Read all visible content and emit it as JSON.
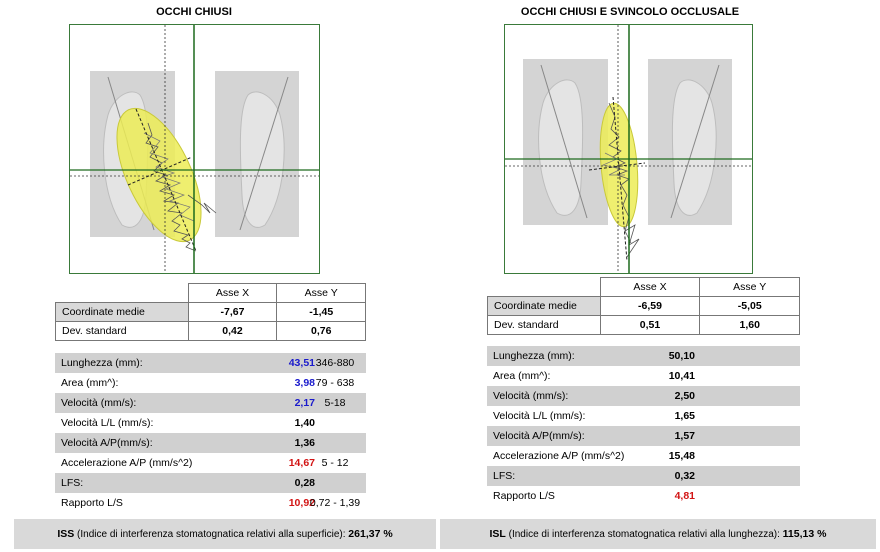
{
  "left": {
    "title": "OCCHI CHIUSI",
    "table": {
      "col_x": "Asse X",
      "col_y": "Asse Y",
      "rows": [
        {
          "label": "Coordinate medie",
          "x": "-7,67",
          "y": "-1,45"
        },
        {
          "label": "Dev. standard",
          "x": "0,42",
          "y": "0,76"
        }
      ]
    },
    "stats": [
      {
        "label": "Lunghezza (mm):",
        "value": "43,51",
        "ref": "346-880",
        "color": "blue"
      },
      {
        "label": "Area (mm^):",
        "value": "3,98",
        "ref": "79 - 638",
        "color": "blue"
      },
      {
        "label": "Velocità (mm/s):",
        "value": "2,17",
        "ref": "5-18",
        "color": "blue"
      },
      {
        "label": "Velocità L/L (mm/s):",
        "value": "1,40",
        "ref": "",
        "color": "black"
      },
      {
        "label": "Velocità  A/P(mm/s):",
        "value": "1,36",
        "ref": "",
        "color": "black"
      },
      {
        "label": "Accelerazione  A/P (mm/s^2)",
        "value": "14,67",
        "ref": "5 - 12",
        "color": "red"
      },
      {
        "label": "LFS:",
        "value": "0,28",
        "ref": "",
        "color": "black"
      },
      {
        "label": "Rapporto L/S",
        "value": "10,92",
        "ref": "0,72 - 1,39",
        "color": "red"
      }
    ],
    "footer": {
      "code": "ISS",
      "text": " (Indice di interferenza stomatognatica relativi alla superficie): ",
      "value": "261,37 %"
    }
  },
  "right": {
    "title": "OCCHI CHIUSI  E SVINCOLO OCCLUSALE",
    "table": {
      "col_x": "Asse X",
      "col_y": "Asse Y",
      "rows": [
        {
          "label": "Coordinate medie",
          "x": "-6,59",
          "y": "-5,05"
        },
        {
          "label": "Dev. standard",
          "x": "0,51",
          "y": "1,60"
        }
      ]
    },
    "stats": [
      {
        "label": "Lunghezza (mm):",
        "value": "50,10",
        "color": "black"
      },
      {
        "label": "Area (mm^):",
        "value": "10,41",
        "color": "black"
      },
      {
        "label": "Velocità (mm/s):",
        "value": "2,50",
        "color": "black"
      },
      {
        "label": "Velocità L/L (mm/s):",
        "value": "1,65",
        "color": "black"
      },
      {
        "label": "Velocità  A/P(mm/s):",
        "value": "1,57",
        "color": "black"
      },
      {
        "label": "Accelerazione  A/P (mm/s^2)",
        "value": "15,48",
        "color": "black"
      },
      {
        "label": "LFS:",
        "value": "0,32",
        "color": "black"
      },
      {
        "label": "Rapporto L/S",
        "value": "4,81",
        "color": "red"
      }
    ],
    "footer": {
      "code": "ISL",
      "text": " (Indice di interferenza stomatognatica relativi alla lunghezza): ",
      "value": "115,13 %"
    }
  },
  "colors": {
    "frame_green": "#3a7a3a",
    "ellipse_yellow": "#ecec56",
    "foot_gray": "#d4d4d4",
    "shade": "#d0d0d0",
    "blue_value": "#1a1acc",
    "red_value": "#d21414"
  }
}
